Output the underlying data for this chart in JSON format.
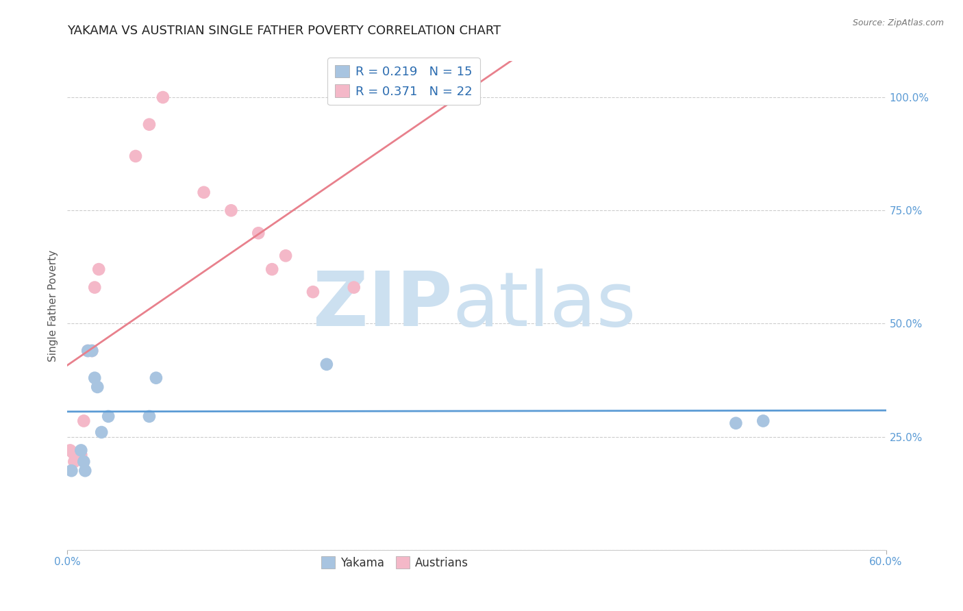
{
  "title": "YAKAMA VS AUSTRIAN SINGLE FATHER POVERTY CORRELATION CHART",
  "source_text": "Source: ZipAtlas.com",
  "ylabel": "Single Father Poverty",
  "xlim": [
    0.0,
    0.6
  ],
  "ylim": [
    0.0,
    1.05
  ],
  "yakama_color": "#a8c4e0",
  "austrians_color": "#f4b8c8",
  "yakama_line_color": "#5b9bd5",
  "austrians_line_color": "#e8808c",
  "yakama_R": 0.219,
  "yakama_N": 15,
  "austrians_R": 0.371,
  "austrians_N": 22,
  "legend_R_color": "#2b6cb0",
  "watermark_zip": "ZIP",
  "watermark_atlas": "atlas",
  "watermark_color": "#cce0f0",
  "background_color": "#ffffff",
  "grid_color": "#cccccc",
  "axis_label_color": "#5b9bd5",
  "title_fontsize": 13,
  "axis_fontsize": 11,
  "tick_fontsize": 11,
  "yakama_x": [
    0.003,
    0.01,
    0.012,
    0.013,
    0.015,
    0.018,
    0.02,
    0.022,
    0.025,
    0.03,
    0.06,
    0.065,
    0.19,
    0.49,
    0.51
  ],
  "yakama_y": [
    0.175,
    0.22,
    0.195,
    0.175,
    0.44,
    0.44,
    0.38,
    0.36,
    0.26,
    0.295,
    0.295,
    0.38,
    0.41,
    0.28,
    0.285
  ],
  "austrians_x": [
    0.002,
    0.004,
    0.005,
    0.008,
    0.01,
    0.012,
    0.015,
    0.018,
    0.02,
    0.023,
    0.05,
    0.06,
    0.07,
    0.1,
    0.12,
    0.14,
    0.15,
    0.16,
    0.18,
    0.21,
    0.265,
    0.27
  ],
  "austrians_y": [
    0.22,
    0.215,
    0.195,
    0.215,
    0.21,
    0.285,
    0.44,
    0.44,
    0.58,
    0.62,
    0.87,
    0.94,
    1.0,
    0.79,
    0.75,
    0.7,
    0.62,
    0.65,
    0.57,
    0.58,
    1.0,
    1.0
  ]
}
